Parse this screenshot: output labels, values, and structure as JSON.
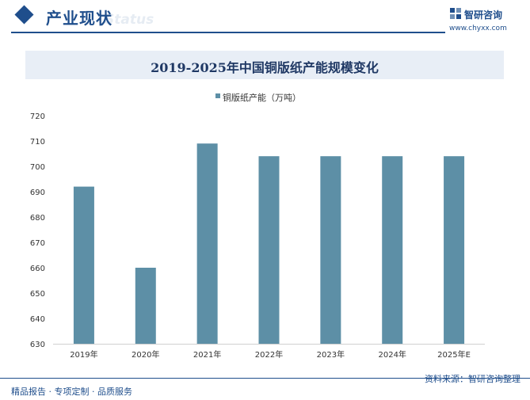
{
  "header": {
    "title": "产业现状",
    "watermark": "Status"
  },
  "brand": {
    "name": "智研咨询",
    "url": "www.chyxx.com"
  },
  "footer": {
    "left": "精品报告 · 专项定制 · 品质服务",
    "right": "资料来源：智研咨询整理"
  },
  "colors": {
    "accent": "#1f4e8c",
    "bar": "#5d8fa6",
    "title_band": "#e8eef6"
  },
  "chart_data": {
    "type": "bar",
    "title": "2019-2025年中国铜版纸产能规模变化",
    "legend": [
      "铜版纸产能（万吨）"
    ],
    "categories": [
      "2019年",
      "2020年",
      "2021年",
      "2022年",
      "2023年",
      "2024年",
      "2025年E"
    ],
    "series": [
      {
        "name": "铜版纸产能（万吨）",
        "values": [
          692,
          660,
          709,
          704,
          704,
          704,
          704
        ]
      }
    ],
    "ylim": [
      630,
      720
    ],
    "yticks": [
      630,
      640,
      650,
      660,
      670,
      680,
      690,
      700,
      710,
      720
    ],
    "xlabel": "",
    "ylabel": "",
    "grid": false
  }
}
